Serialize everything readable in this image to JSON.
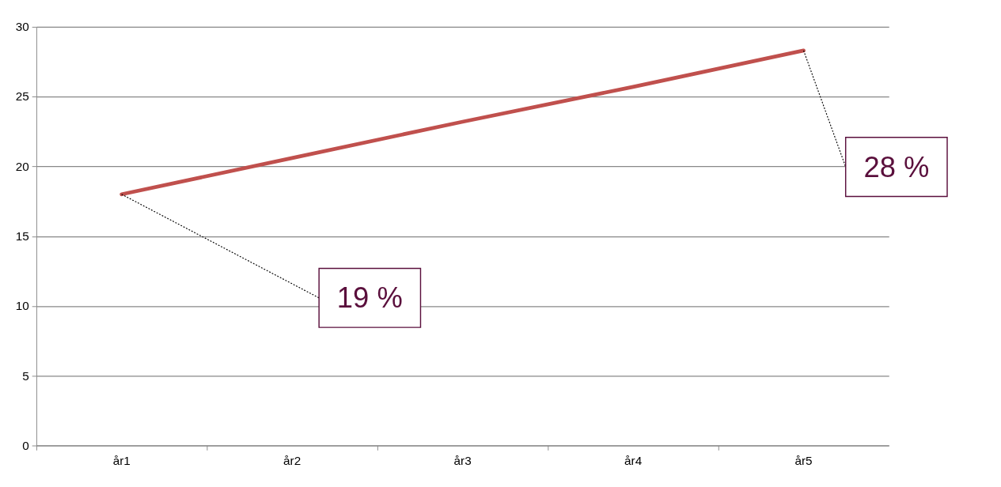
{
  "chart_data": {
    "type": "line",
    "categories": [
      "år1",
      "år2",
      "år3",
      "år4",
      "år5"
    ],
    "series": [
      {
        "color": "#c0504d",
        "values": [
          18,
          20.6,
          23.2,
          25.7,
          28.3
        ]
      }
    ],
    "ylim": [
      0,
      30
    ],
    "yticks": [
      0,
      5,
      10,
      15,
      20,
      25,
      30
    ],
    "grid": "y",
    "marker": "none",
    "annotations": [
      {
        "text": "19 %",
        "x": "år1",
        "y": 18
      },
      {
        "text": "28 %",
        "x": "år5",
        "y": 28.3
      }
    ]
  }
}
